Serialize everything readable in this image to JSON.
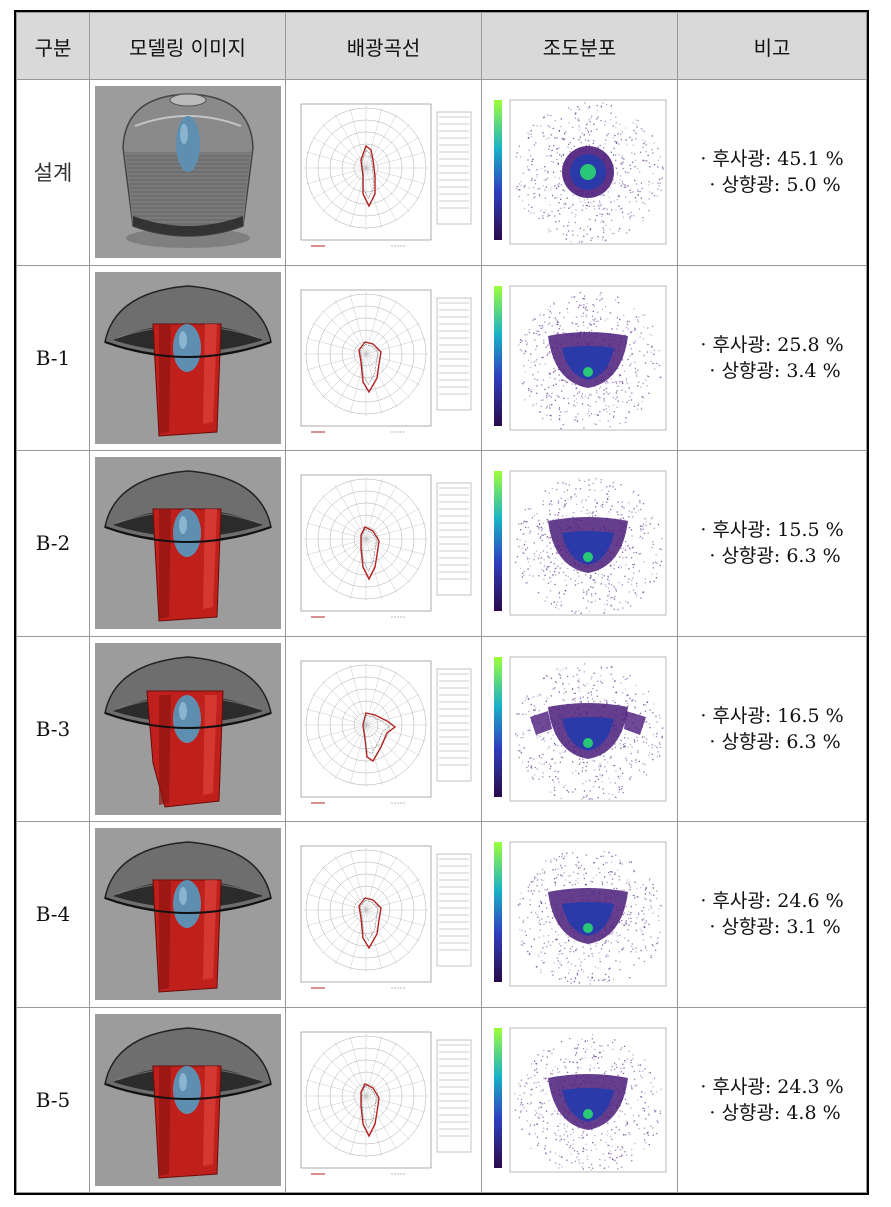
{
  "headers": [
    "구분",
    "모델링 이미지",
    "배광곡선",
    "조도분포",
    "비고"
  ],
  "rows": [
    {
      "label": "설계",
      "back": "· 후사광: 45.1 %",
      "up": "· 상향광: 5.0 %",
      "model": "globe",
      "polar": "design"
    },
    {
      "label": "B-1",
      "back": "· 후사광: 25.8 %",
      "up": "· 상향광: 3.4 %",
      "model": "shade",
      "polar": "b1"
    },
    {
      "label": "B-2",
      "back": "· 후사광: 15.5 %",
      "up": "· 상향광: 6.3 %",
      "model": "shade",
      "polar": "b2"
    },
    {
      "label": "B-3",
      "back": "· 후사광: 16.5 %",
      "up": "· 상향광: 6.3 %",
      "model": "shade",
      "polar": "b3"
    },
    {
      "label": "B-4",
      "back": "· 후사광: 24.6 %",
      "up": "· 상향광: 3.1 %",
      "model": "shade",
      "polar": "b4"
    },
    {
      "label": "B-5",
      "back": "· 후사광: 24.3 %",
      "up": "· 상향광: 4.8 %",
      "model": "shade",
      "polar": "b5"
    }
  ],
  "colors": {
    "lamp": "#5f8fb0",
    "housing": "#c0201c",
    "curve": "#b22222",
    "heat_core": "#28c878",
    "heat_mid": "#2a3aa8",
    "heat_outer": "#4b1c7a"
  }
}
